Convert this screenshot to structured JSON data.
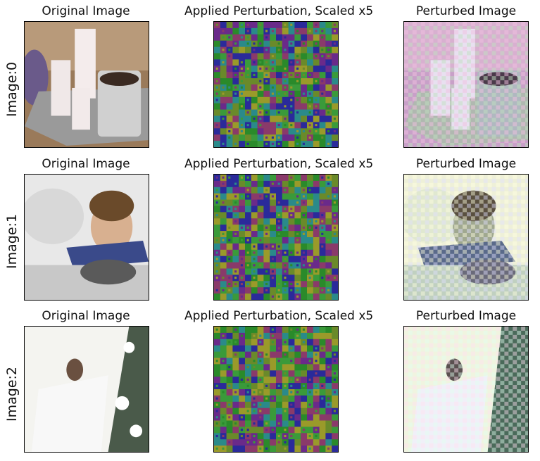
{
  "figure": {
    "columns": [
      "Original Image",
      "Applied Perturbation, Scaled x5",
      "Perturbed Image"
    ],
    "rows": [
      {
        "label": "Image:0",
        "description": "candles and mug on tray"
      },
      {
        "label": "Image:1",
        "description": "smiling boy"
      },
      {
        "label": "Image:2",
        "description": "child among white blossoms"
      }
    ]
  },
  "colors": {
    "perturb_palette": [
      "#6a2a8a",
      "#2a8a2a",
      "#3a9a3a",
      "#9a9a2a",
      "#2a2a9a",
      "#8a3a6a",
      "#2a8a8a",
      "#6a8a2a"
    ]
  }
}
